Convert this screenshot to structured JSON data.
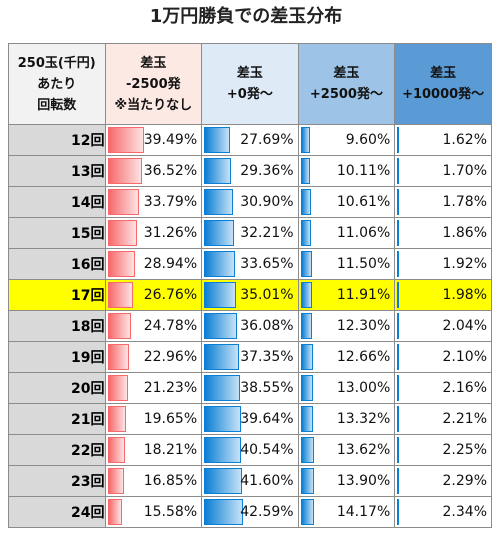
{
  "title": "1万円勝負での差玉分布",
  "headers": [
    [
      "250玉(千円)",
      "あたり",
      "回転数"
    ],
    [
      "差玉",
      "-2500発",
      "※当たりなし"
    ],
    [
      "差玉",
      "+0発～"
    ],
    [
      "差玉",
      "+2500発～"
    ],
    [
      "差玉",
      "+10000発～"
    ]
  ],
  "highlight_row": "17回",
  "highlight_color": "#ffff00",
  "bar_colors": {
    "loss": "#f8696b",
    "gain": "#0b7fd4"
  },
  "rows": [
    {
      "label": "12回",
      "values": [
        "39.49%",
        "27.69%",
        "9.60%",
        "1.62%"
      ]
    },
    {
      "label": "13回",
      "values": [
        "36.52%",
        "29.36%",
        "10.11%",
        "1.70%"
      ]
    },
    {
      "label": "14回",
      "values": [
        "33.79%",
        "30.90%",
        "10.61%",
        "1.78%"
      ]
    },
    {
      "label": "15回",
      "values": [
        "31.26%",
        "32.21%",
        "11.06%",
        "1.86%"
      ]
    },
    {
      "label": "16回",
      "values": [
        "28.94%",
        "33.65%",
        "11.50%",
        "1.92%"
      ]
    },
    {
      "label": "17回",
      "values": [
        "26.76%",
        "35.01%",
        "11.91%",
        "1.98%"
      ]
    },
    {
      "label": "18回",
      "values": [
        "24.78%",
        "36.08%",
        "12.30%",
        "2.04%"
      ]
    },
    {
      "label": "19回",
      "values": [
        "22.96%",
        "37.35%",
        "12.66%",
        "2.10%"
      ]
    },
    {
      "label": "20回",
      "values": [
        "21.23%",
        "38.55%",
        "13.00%",
        "2.16%"
      ]
    },
    {
      "label": "21回",
      "values": [
        "19.65%",
        "39.64%",
        "13.32%",
        "2.21%"
      ]
    },
    {
      "label": "22回",
      "values": [
        "18.21%",
        "40.54%",
        "13.62%",
        "2.25%"
      ]
    },
    {
      "label": "23回",
      "values": [
        "16.85%",
        "41.60%",
        "13.90%",
        "2.29%"
      ]
    },
    {
      "label": "24回",
      "values": [
        "15.58%",
        "42.59%",
        "14.17%",
        "2.34%"
      ]
    }
  ]
}
